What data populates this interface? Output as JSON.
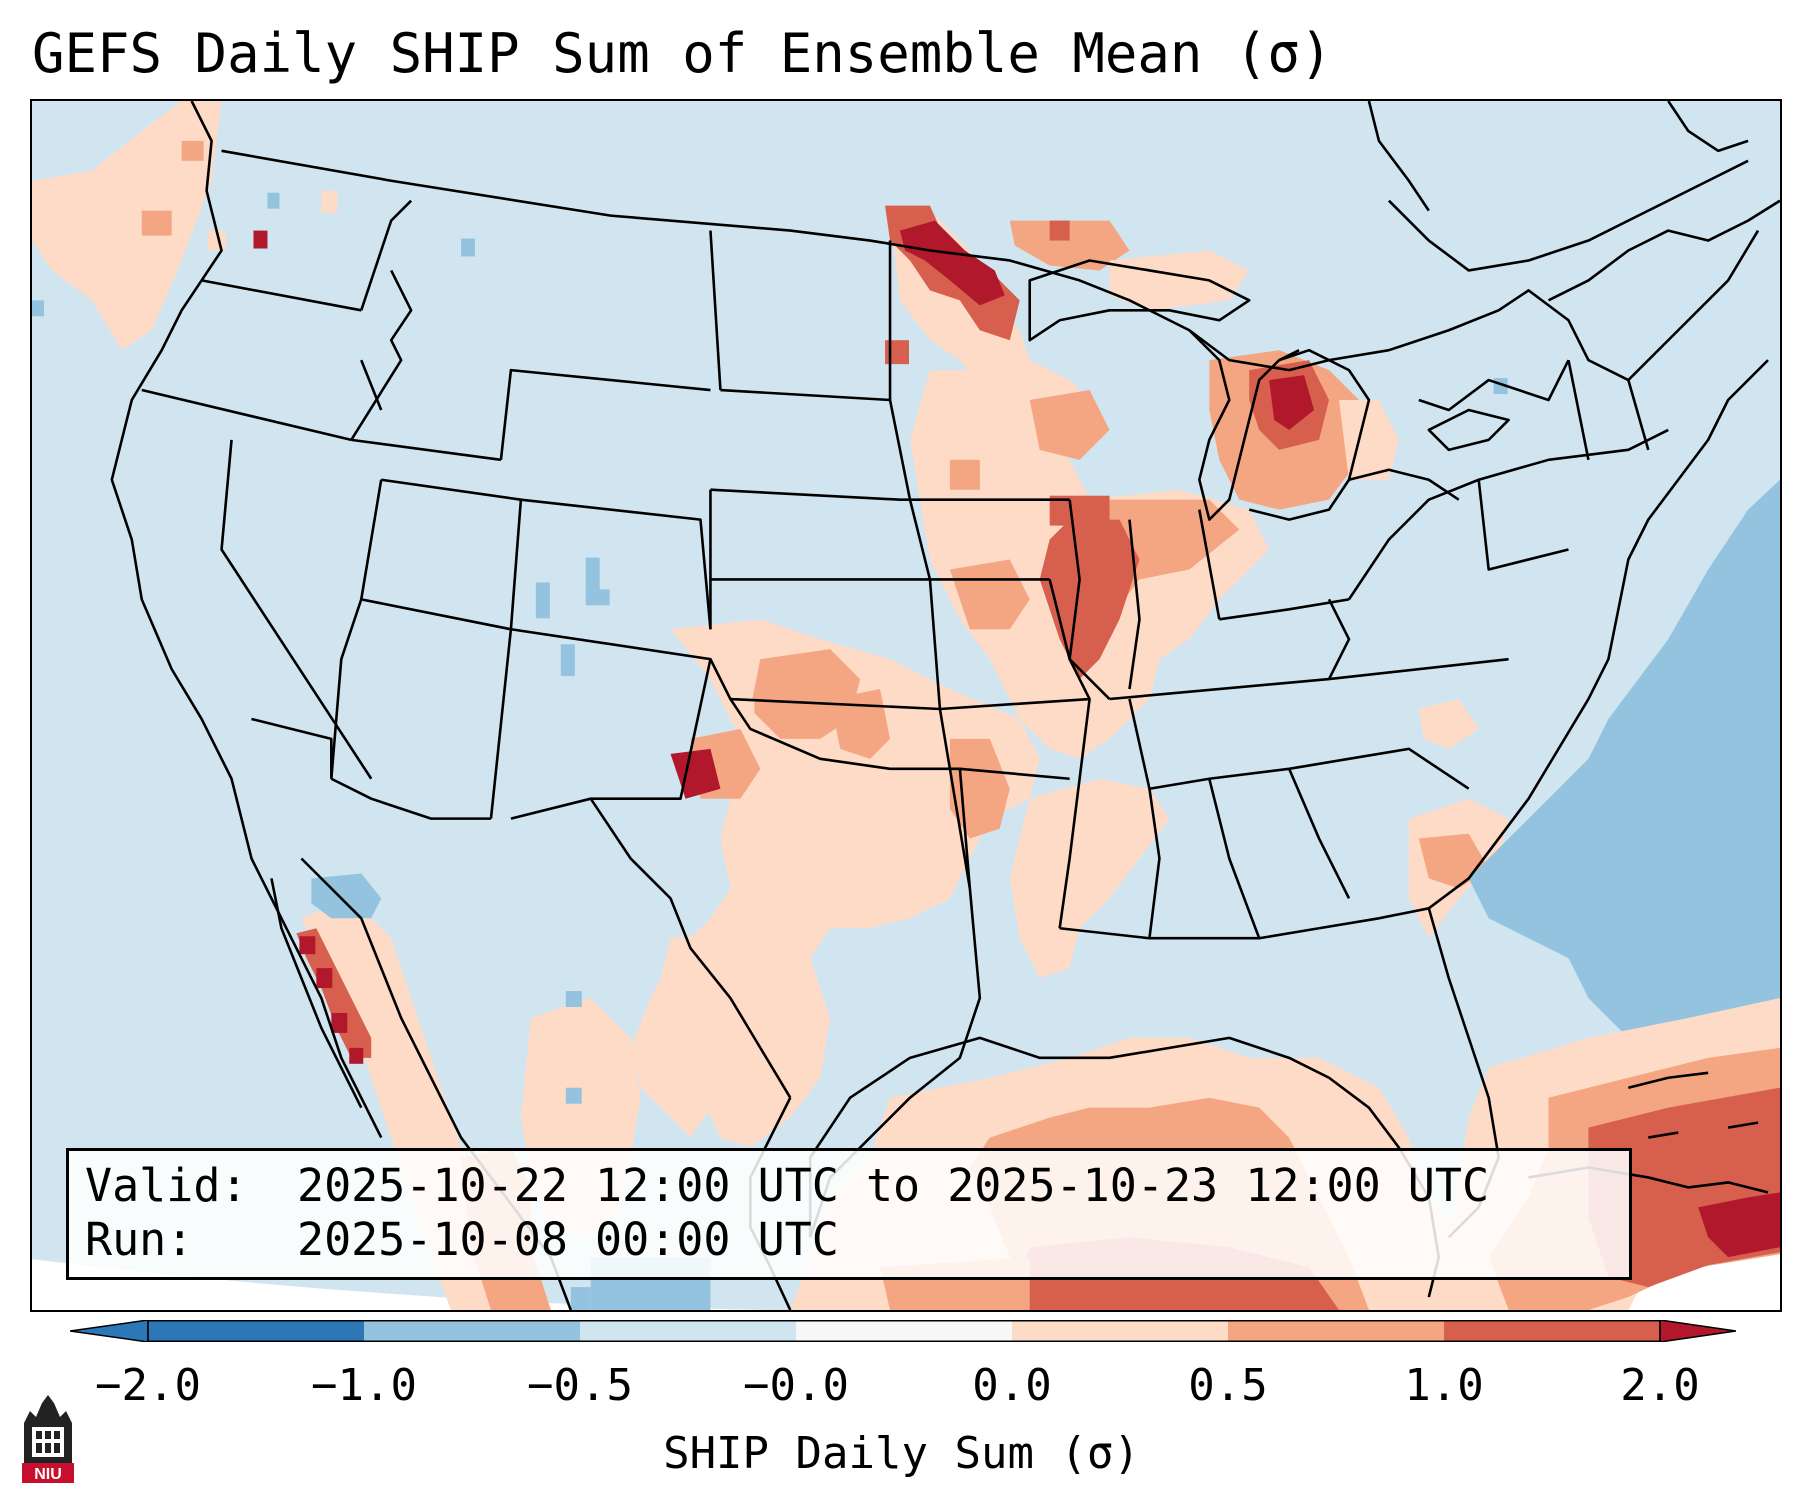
{
  "title": "GEFS Daily SHIP Sum of Ensemble Mean (σ)",
  "info": {
    "valid_label": "Valid:",
    "valid_value": "2025-10-22 12:00 UTC to 2025-10-23 12:00 UTC",
    "run_label": "Run:",
    "run_value": "2025-10-08 00:00 UTC"
  },
  "colorbar": {
    "label": "SHIP Daily Sum (σ)",
    "ticks": [
      "−2.0",
      "−1.0",
      "−0.5",
      "−0.0",
      "0.0",
      "0.5",
      "1.0",
      "2.0"
    ],
    "colors": [
      "#2c78b6",
      "#93c3df",
      "#d1e5f0",
      "#f7f7f7",
      "#fddbc7",
      "#f4a582",
      "#d6604d",
      "#b2182b"
    ],
    "under_color": "#2c78b6",
    "over_color": "#b2182b"
  },
  "logo": {
    "icon": "niu-logo-icon",
    "text": "NIU",
    "color": "#c8102e"
  },
  "map": {
    "background_color": "#d1e5f0",
    "outside_color": "#ffffff",
    "border_color": "#000000"
  }
}
